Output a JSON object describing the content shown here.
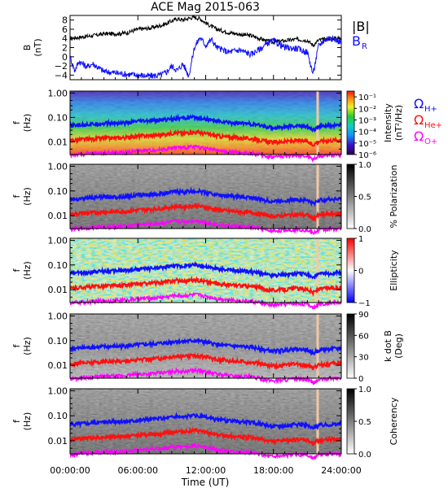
{
  "title": "ACE Mag 2015-063",
  "time_axis": {
    "label": "Time (UT)",
    "ticks": [
      "00:00:00",
      "06:00:00",
      "12:00:00",
      "18:00:00",
      "24:00:00"
    ],
    "range_hours": [
      0,
      24
    ]
  },
  "freq_ticks": [
    "1.00",
    "0.10",
    "0.01"
  ],
  "freq_label": "f (Hz)",
  "colors": {
    "black": "#000000",
    "blue": "#1010ff",
    "red": "#ff1010",
    "magenta": "#ff00ff",
    "salmon_bar": "#f2c8a6"
  },
  "panels": [
    {
      "name": "B",
      "ylabel_top": "B",
      "ylabel_unit": "(nT)",
      "yticks": [
        "8",
        "6",
        "4",
        "2",
        "0",
        "−2",
        "−4"
      ],
      "legend": [
        {
          "text": "|B|",
          "color": "#000000"
        },
        {
          "text": "B",
          "sub": "R",
          "color": "#1010ff"
        }
      ]
    },
    {
      "name": "intensity",
      "colorbar_type": "rainbow",
      "colorbar_ticks": [
        "10⁻¹",
        "10⁻²",
        "10⁻³",
        "10⁻⁴",
        "10⁻⁵",
        "10⁻⁶"
      ],
      "colorbar_label_1": "Intensity",
      "colorbar_label_2": "(nT²/Hz)",
      "legend": [
        {
          "text": "Ω",
          "sub": "H+",
          "color": "#1010ff"
        },
        {
          "text": "Ω",
          "sub": "He+",
          "color": "#ff1010"
        },
        {
          "text": "Ω",
          "sub": "O+",
          "color": "#ff00ff"
        }
      ]
    },
    {
      "name": "polarization",
      "colorbar_type": "gray",
      "colorbar_ticks": [
        "1.0",
        "0.5",
        "0.0"
      ],
      "colorbar_label_1": "% Polarization"
    },
    {
      "name": "ellipticity",
      "colorbar_type": "bwr",
      "colorbar_ticks": [
        "1",
        "0",
        "−1"
      ],
      "colorbar_label_1": "Ellipticity"
    },
    {
      "name": "kdotb",
      "colorbar_type": "gray",
      "colorbar_ticks": [
        "90",
        "60",
        "30",
        "0"
      ],
      "colorbar_label_1": "k dot B",
      "colorbar_label_2": "(Deg)"
    },
    {
      "name": "coherency",
      "colorbar_type": "gray",
      "colorbar_ticks": [
        "1.0",
        "0.5",
        "0.0"
      ],
      "colorbar_label_1": "Coherency"
    }
  ],
  "chart_data": {
    "type": "line",
    "title": "ACE Mag 2015-063",
    "xlabel": "Time (UT)",
    "xlim_hours": [
      0,
      24
    ],
    "magnetic_field": {
      "ylabel": "B (nT)",
      "ylim": [
        -5,
        9
      ],
      "series": [
        {
          "name": "|B|",
          "color": "#000000",
          "t": [
            0,
            1,
            2,
            3,
            4,
            5,
            6,
            7,
            8,
            8.5,
            9,
            9.5,
            10,
            10.5,
            11,
            11.5,
            12,
            12.5,
            13,
            14,
            15,
            16,
            17,
            17.5,
            18,
            19,
            20,
            21,
            21.5,
            22,
            23,
            24
          ],
          "v": [
            4.0,
            4.3,
            4.6,
            5.0,
            5.0,
            5.2,
            6.0,
            6.2,
            6.8,
            7.2,
            7.8,
            8.3,
            8.0,
            8.4,
            8.6,
            8.3,
            7.4,
            6.6,
            6.0,
            5.3,
            4.9,
            4.6,
            3.8,
            3.4,
            3.2,
            3.5,
            3.8,
            3.6,
            2.5,
            3.6,
            4.0,
            4.1
          ]
        },
        {
          "name": "B",
          "legend_sub": "R",
          "color": "#1010ff",
          "t": [
            0,
            0.4,
            0.8,
            1.5,
            2,
            3,
            4,
            5,
            6,
            7,
            8,
            8.5,
            9,
            9.5,
            10,
            10.5,
            11,
            11.5,
            12,
            12.5,
            13,
            14,
            15,
            16,
            17,
            17.5,
            18,
            19,
            20,
            21,
            21.5,
            22,
            22.5,
            23,
            24
          ],
          "v": [
            0.0,
            -3.0,
            -1.0,
            -2.2,
            -1.5,
            -3.2,
            -3.5,
            -3.8,
            -4.0,
            -4.2,
            -4.0,
            -3.4,
            -2.0,
            -3.0,
            -1.5,
            -4.2,
            2.0,
            4.2,
            2.5,
            3.8,
            2.0,
            1.0,
            1.5,
            0.5,
            2.0,
            3.0,
            3.5,
            2.0,
            1.8,
            1.0,
            -3.8,
            2.5,
            3.6,
            4.2,
            3.2
          ]
        }
      ]
    },
    "frequency_panels_ylabel": "f (Hz)",
    "frequency_panels_yscale": "log",
    "frequency_panels_ylim": [
      0.003,
      1.2
    ],
    "gyrofrequency_series": [
      {
        "name": "Ω",
        "legend_sub": "H+",
        "color": "#1010ff",
        "t": [
          0,
          1,
          2,
          3,
          4,
          5,
          6,
          7,
          8,
          8.5,
          9,
          9.5,
          10,
          10.5,
          11,
          11.5,
          12,
          12.5,
          13,
          14,
          15,
          16,
          17,
          17.5,
          18,
          19,
          20,
          21,
          21.5,
          22,
          23,
          24
        ],
        "f": [
          0.045,
          0.05,
          0.053,
          0.057,
          0.058,
          0.06,
          0.068,
          0.072,
          0.078,
          0.082,
          0.09,
          0.095,
          0.09,
          0.096,
          0.1,
          0.096,
          0.086,
          0.078,
          0.07,
          0.062,
          0.058,
          0.054,
          0.045,
          0.04,
          0.038,
          0.041,
          0.045,
          0.042,
          0.03,
          0.042,
          0.046,
          0.048
        ]
      },
      {
        "name": "Ω",
        "legend_sub": "He+",
        "color": "#ff1010",
        "t": [
          0,
          1,
          2,
          3,
          4,
          5,
          6,
          7,
          8,
          8.5,
          9,
          9.5,
          10,
          10.5,
          11,
          11.5,
          12,
          12.5,
          13,
          14,
          15,
          16,
          17,
          17.5,
          18,
          19,
          20,
          21,
          21.5,
          22,
          23,
          24
        ],
        "f": [
          0.0112,
          0.0125,
          0.0132,
          0.0142,
          0.0145,
          0.015,
          0.017,
          0.018,
          0.0195,
          0.0205,
          0.0225,
          0.0238,
          0.0225,
          0.024,
          0.025,
          0.024,
          0.0215,
          0.0195,
          0.0175,
          0.0155,
          0.0145,
          0.0135,
          0.0112,
          0.01,
          0.0095,
          0.0102,
          0.0112,
          0.0105,
          0.0075,
          0.0105,
          0.0115,
          0.012
        ]
      },
      {
        "name": "Ω",
        "legend_sub": "O+",
        "color": "#ff00ff",
        "t": [
          0,
          1,
          2,
          3,
          4,
          5,
          6,
          7,
          8,
          8.5,
          9,
          9.5,
          10,
          10.5,
          11,
          11.5,
          12,
          12.5,
          13,
          14,
          15,
          16,
          17,
          17.5,
          18,
          19,
          20,
          21,
          21.5,
          22,
          23,
          24
        ],
        "f": [
          0.0028,
          0.0031,
          0.0033,
          0.0036,
          0.0036,
          0.0038,
          0.0043,
          0.0045,
          0.0049,
          0.0051,
          0.0056,
          0.006,
          0.0056,
          0.006,
          0.0063,
          0.006,
          0.0054,
          0.0049,
          0.0044,
          0.0039,
          0.0036,
          0.0034,
          0.0028,
          0.0025,
          0.0024,
          0.0026,
          0.0028,
          0.0026,
          0.0019,
          0.0026,
          0.0029,
          0.003
        ]
      }
    ],
    "spectrogram_panels": [
      {
        "name": "intensity",
        "colorbar_scale": "log",
        "colorbar_range": [
          1e-06,
          0.3
        ],
        "colormap": "rainbow"
      },
      {
        "name": "polarization",
        "colorbar_range": [
          0,
          1
        ],
        "colormap": "gray"
      },
      {
        "name": "ellipticity",
        "colorbar_range": [
          -1,
          1
        ],
        "colormap": "blue-white-red"
      },
      {
        "name": "kdotb",
        "colorbar_range": [
          0,
          90
        ],
        "colormap": "gray"
      },
      {
        "name": "coherency",
        "colorbar_range": [
          0,
          1
        ],
        "colormap": "gray"
      }
    ]
  }
}
